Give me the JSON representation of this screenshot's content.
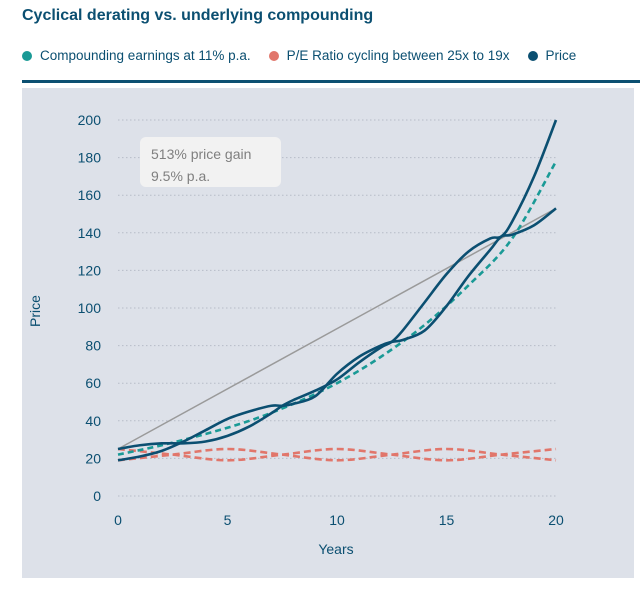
{
  "title": "Cyclical derating vs. underlying compounding",
  "legend": [
    {
      "label": "Compounding earnings at 11% p.a.",
      "color": "#1a9a96"
    },
    {
      "label": "P/E Ratio cycling between 25x to 19x",
      "color": "#e1766b"
    },
    {
      "label": "Price",
      "color": "#0b4f71"
    }
  ],
  "colors": {
    "brand": "#0b4f71",
    "earnings": "#1a9a96",
    "pe": "#e1766b",
    "price": "#0b4f71",
    "trend": "#9a9a9a",
    "plot_bg": "#dde1e9"
  },
  "chart_data": {
    "type": "line",
    "xlabel": "Years",
    "ylabel": "Price",
    "xlim": [
      0,
      20
    ],
    "ylim": [
      0,
      200
    ],
    "xticks": [
      0,
      5,
      10,
      15,
      20
    ],
    "yticks": [
      0,
      20,
      40,
      60,
      80,
      100,
      120,
      140,
      160,
      180,
      200
    ],
    "grid": "horizontal dotted",
    "legend_position": "top",
    "annotation": {
      "lines": [
        "513% price gain",
        "9.5% p.a."
      ]
    },
    "series": [
      {
        "name": "Compounding earnings at 11% p.a.",
        "style": "dashed",
        "x": [
          0,
          2,
          4,
          6,
          8,
          10,
          12,
          14,
          16,
          18,
          20
        ],
        "y": [
          22,
          27,
          33,
          40,
          49,
          60,
          74,
          91,
          112,
          137,
          178
        ]
      },
      {
        "name": "P/E Ratio cycling between 25x to 19x",
        "style": "dashed",
        "x": [
          0,
          2.5,
          5,
          7.5,
          10,
          12.5,
          15,
          17.5,
          20
        ],
        "y": [
          19,
          22,
          25,
          22,
          19,
          22,
          25,
          22,
          19
        ]
      },
      {
        "name": "P/E Ratio cycling between 25x to 19x",
        "style": "dashed",
        "x": [
          0,
          2.5,
          5,
          7.5,
          10,
          12.5,
          15,
          17.5,
          20
        ],
        "y": [
          25,
          22,
          19,
          22,
          25,
          22,
          19,
          22,
          25
        ]
      },
      {
        "name": "Price",
        "style": "solid",
        "x": [
          0,
          1,
          2,
          3,
          4,
          5,
          6,
          7,
          7.5,
          8,
          9,
          10,
          11,
          12,
          12.5,
          13,
          14,
          15,
          16,
          17,
          17.5,
          18,
          19,
          20
        ],
        "y": [
          25,
          27,
          28,
          28,
          29,
          32,
          37,
          44,
          48,
          51,
          56,
          62,
          71,
          79,
          82,
          88,
          103,
          118,
          130,
          137,
          138,
          146,
          170,
          200
        ]
      },
      {
        "name": "Price",
        "style": "solid",
        "x": [
          0,
          1,
          2,
          3,
          4,
          5,
          6,
          7,
          7.5,
          8,
          9,
          10,
          11,
          12,
          12.5,
          13,
          14,
          15,
          16,
          17,
          17.5,
          18,
          19,
          20
        ],
        "y": [
          19,
          21,
          24,
          29,
          35,
          41,
          45,
          48,
          48,
          49,
          53,
          65,
          74,
          80,
          82,
          83,
          88,
          101,
          117,
          131,
          138,
          139,
          144,
          153
        ]
      },
      {
        "name": "",
        "style": "trend",
        "x": [
          0,
          20
        ],
        "y": [
          25,
          153
        ]
      }
    ]
  }
}
